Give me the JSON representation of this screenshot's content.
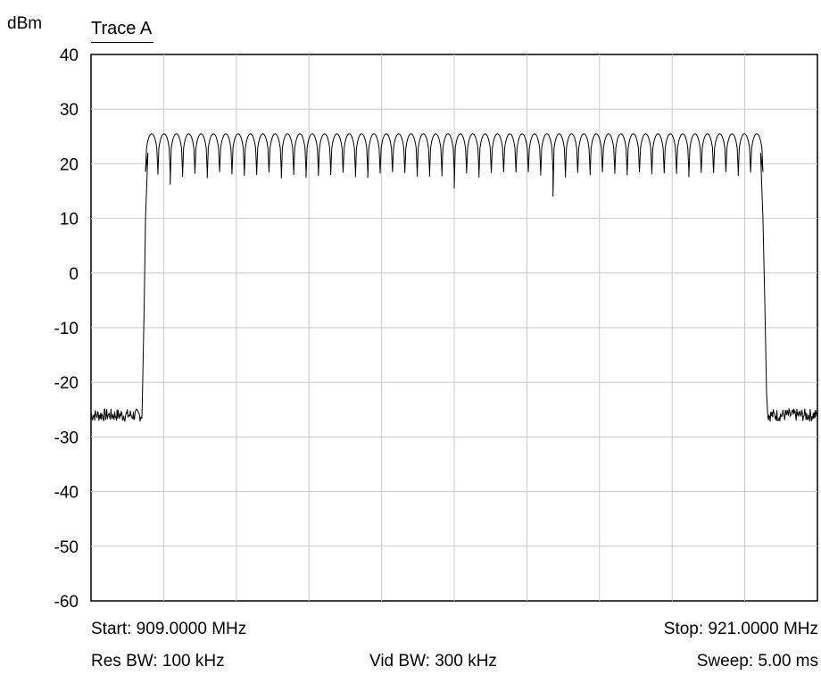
{
  "header": {
    "unit": "dBm",
    "trace_label": "Trace A"
  },
  "footer": {
    "start": "Start: 909.0000 MHz",
    "stop": "Stop: 921.0000 MHz",
    "res_bw": "Res BW: 100 kHz",
    "vid_bw": "Vid BW: 300 kHz",
    "sweep": "Sweep: 5.00 ms"
  },
  "chart_data": {
    "type": "line",
    "xlim": [
      909.0,
      921.0
    ],
    "ylim": [
      -60,
      40
    ],
    "ylabel": "dBm",
    "y_ticks": [
      40,
      30,
      20,
      10,
      0,
      -10,
      -20,
      -30,
      -40,
      -50,
      -60
    ],
    "x_gridlines": 10,
    "grid": true,
    "legend": "top-left",
    "series": [
      {
        "name": "Trace A",
        "color": "#000000",
        "noise_floor_dbm": -26,
        "passband_start_mhz": 909.9,
        "passband_stop_mhz": 920.1,
        "passband_peak_dbm": 25.5,
        "passband_dip_dbm": 18.5,
        "channel_count": 50,
        "points": [
          [
            909.0,
            -25.8
          ],
          [
            909.2,
            -25.5
          ],
          [
            909.4,
            -26.0
          ],
          [
            909.6,
            -25.2
          ],
          [
            909.8,
            -25.9
          ],
          [
            909.85,
            -22
          ],
          [
            909.9,
            0
          ],
          [
            909.97,
            22
          ],
          [
            910.0,
            25.5
          ],
          [
            920.0,
            25.5
          ],
          [
            920.03,
            22
          ],
          [
            920.1,
            0
          ],
          [
            920.15,
            -22
          ],
          [
            920.2,
            -26.0
          ],
          [
            920.4,
            -25.3
          ],
          [
            920.6,
            -25.9
          ],
          [
            920.8,
            -25.4
          ],
          [
            921.0,
            -25.7
          ]
        ]
      }
    ]
  }
}
